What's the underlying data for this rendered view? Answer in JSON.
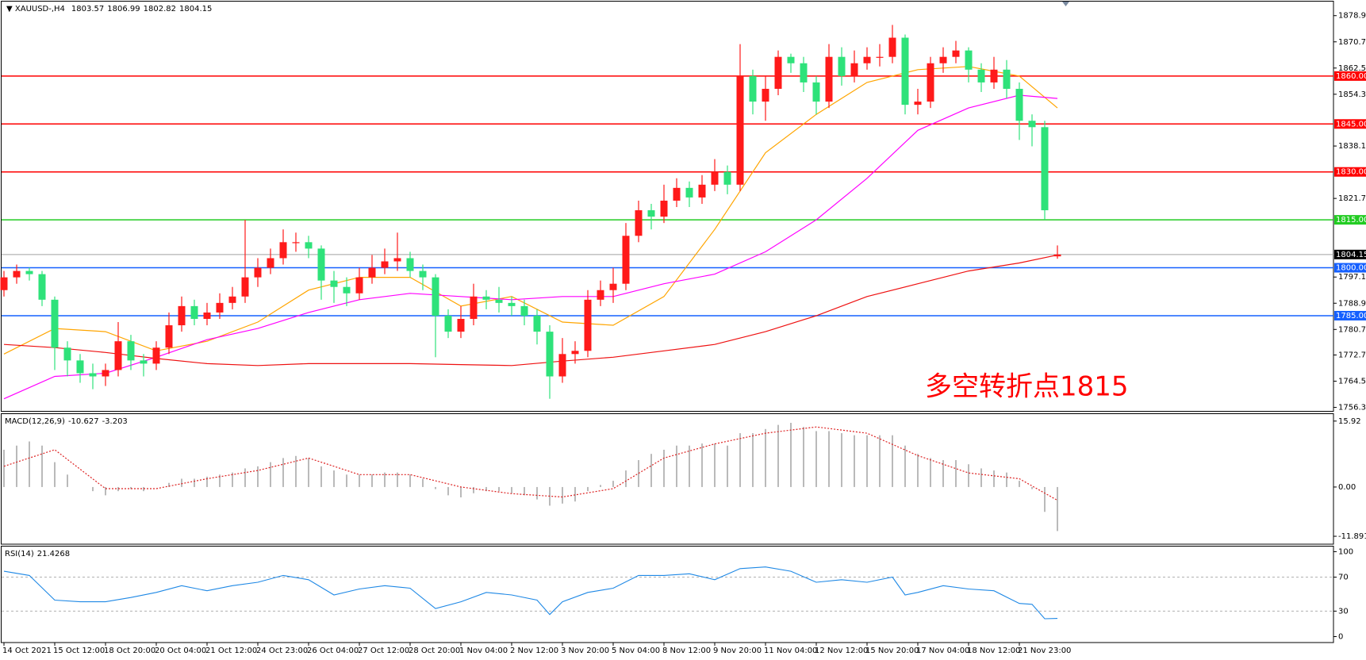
{
  "chart_data": [
    {
      "type": "candlestick",
      "symbol": "XAUUSD-,H4",
      "annotation": "多空转折点1815",
      "annotation_color": "#ff0000",
      "up_color": "#ff1a1a",
      "down_color": "#2ee27a",
      "categories": [
        "14 Oct 2021",
        null,
        null,
        null,
        "15 Oct 12:00",
        null,
        null,
        null,
        "18 Oct 20:00",
        null,
        null,
        null,
        "20 Oct 04:00",
        null,
        null,
        null,
        "21 Oct 12:00",
        null,
        null,
        null,
        "24 Oct 23:00",
        null,
        null,
        null,
        "26 Oct 04:00",
        null,
        null,
        null,
        "27 Oct 12:00",
        null,
        null,
        null,
        "28 Oct 20:00",
        null,
        null,
        null,
        "1 Nov 04:00",
        null,
        null,
        null,
        "2 Nov 12:00",
        null,
        null,
        null,
        "3 Nov 20:00",
        null,
        null,
        null,
        "5 Nov 04:00",
        null,
        null,
        null,
        "8 Nov 12:00",
        null,
        null,
        null,
        "9 Nov 20:00",
        null,
        null,
        null,
        "11 Nov 04:00",
        null,
        null,
        null,
        "12 Nov 12:00",
        null,
        null,
        null,
        "15 Nov 20:00",
        null,
        null,
        null,
        "17 Nov 04:00",
        null,
        null,
        null,
        "18 Nov 12:00",
        null,
        null,
        null,
        "21 Nov 23:00",
        null,
        null,
        null
      ],
      "ohlc": [
        [
          1793,
          1799,
          1791,
          1797
        ],
        [
          1797,
          1801,
          1795,
          1799
        ],
        [
          1799,
          1800,
          1796,
          1798
        ],
        [
          1798,
          1799,
          1788,
          1790
        ],
        [
          1790,
          1791,
          1768,
          1775
        ],
        [
          1775,
          1777,
          1766,
          1771
        ],
        [
          1771,
          1773,
          1764,
          1767
        ],
        [
          1767,
          1770,
          1762,
          1766
        ],
        [
          1766,
          1770,
          1763,
          1768
        ],
        [
          1768,
          1783,
          1766,
          1777
        ],
        [
          1777,
          1779,
          1768,
          1771
        ],
        [
          1771,
          1773,
          1766,
          1770
        ],
        [
          1770,
          1777,
          1768,
          1775
        ],
        [
          1775,
          1786,
          1773,
          1782
        ],
        [
          1782,
          1791,
          1780,
          1788
        ],
        [
          1788,
          1790,
          1782,
          1784
        ],
        [
          1784,
          1789,
          1782,
          1786
        ],
        [
          1786,
          1792,
          1784,
          1789
        ],
        [
          1789,
          1794,
          1787,
          1791
        ],
        [
          1791,
          1815,
          1789,
          1797
        ],
        [
          1797,
          1803,
          1794,
          1800
        ],
        [
          1800,
          1806,
          1798,
          1803
        ],
        [
          1803,
          1812,
          1801,
          1808
        ],
        [
          1808,
          1811,
          1805,
          1808
        ],
        [
          1808,
          1810,
          1803,
          1806
        ],
        [
          1806,
          1807,
          1790,
          1796
        ],
        [
          1796,
          1799,
          1789,
          1794
        ],
        [
          1794,
          1797,
          1788,
          1792
        ],
        [
          1792,
          1800,
          1790,
          1797
        ],
        [
          1797,
          1804,
          1795,
          1800
        ],
        [
          1800,
          1806,
          1798,
          1802
        ],
        [
          1802,
          1811,
          1799,
          1803
        ],
        [
          1803,
          1805,
          1797,
          1799
        ],
        [
          1799,
          1801,
          1793,
          1797
        ],
        [
          1797,
          1798,
          1772,
          1785
        ],
        [
          1785,
          1787,
          1778,
          1780
        ],
        [
          1780,
          1788,
          1778,
          1784
        ],
        [
          1784,
          1795,
          1782,
          1791
        ],
        [
          1791,
          1793,
          1787,
          1790
        ],
        [
          1790,
          1794,
          1786,
          1789
        ],
        [
          1789,
          1791,
          1785,
          1788
        ],
        [
          1788,
          1790,
          1782,
          1785
        ],
        [
          1785,
          1787,
          1776,
          1780
        ],
        [
          1780,
          1782,
          1759,
          1766
        ],
        [
          1766,
          1778,
          1764,
          1773
        ],
        [
          1773,
          1777,
          1770,
          1774
        ],
        [
          1774,
          1793,
          1772,
          1790
        ],
        [
          1790,
          1796,
          1788,
          1793
        ],
        [
          1793,
          1800,
          1789,
          1795
        ],
        [
          1795,
          1814,
          1793,
          1810
        ],
        [
          1810,
          1821,
          1808,
          1818
        ],
        [
          1818,
          1820,
          1812,
          1816
        ],
        [
          1816,
          1826,
          1814,
          1821
        ],
        [
          1821,
          1828,
          1819,
          1825
        ],
        [
          1825,
          1827,
          1819,
          1822
        ],
        [
          1822,
          1829,
          1820,
          1826
        ],
        [
          1826,
          1834,
          1824,
          1830
        ],
        [
          1830,
          1832,
          1823,
          1826
        ],
        [
          1826,
          1870,
          1824,
          1860
        ],
        [
          1860,
          1862,
          1848,
          1852
        ],
        [
          1852,
          1860,
          1846,
          1856
        ],
        [
          1856,
          1868,
          1854,
          1866
        ],
        [
          1866,
          1867,
          1861,
          1864
        ],
        [
          1864,
          1866,
          1855,
          1858
        ],
        [
          1858,
          1860,
          1848,
          1852
        ],
        [
          1852,
          1870,
          1850,
          1866
        ],
        [
          1866,
          1869,
          1857,
          1860
        ],
        [
          1860,
          1868,
          1858,
          1864
        ],
        [
          1864,
          1869,
          1862,
          1866
        ],
        [
          1866,
          1870,
          1863,
          1866
        ],
        [
          1866,
          1876,
          1864,
          1872
        ],
        [
          1872,
          1873,
          1848,
          1851
        ],
        [
          1851,
          1856,
          1848,
          1852
        ],
        [
          1852,
          1866,
          1850,
          1864
        ],
        [
          1864,
          1869,
          1861,
          1866
        ],
        [
          1866,
          1871,
          1864,
          1868
        ],
        [
          1868,
          1869,
          1858,
          1862
        ],
        [
          1862,
          1864,
          1855,
          1858
        ],
        [
          1858,
          1866,
          1856,
          1862
        ],
        [
          1862,
          1865,
          1853,
          1856
        ],
        [
          1856,
          1858,
          1840,
          1846
        ],
        [
          1846,
          1848,
          1838,
          1844
        ],
        [
          1844,
          1846,
          1815,
          1818
        ],
        [
          1803.57,
          1806.99,
          1802.82,
          1804.15
        ]
      ],
      "series": [
        {
          "color": "#ffa500",
          "x": [
            0,
            4,
            8,
            12,
            16,
            20,
            24,
            28,
            32,
            36,
            40,
            44,
            48,
            52,
            56,
            60,
            64,
            68,
            72,
            76,
            80,
            83
          ],
          "values": [
            1773,
            1781,
            1780,
            1774,
            1777,
            1783,
            1793,
            1797,
            1797,
            1788,
            1791,
            1783,
            1782,
            1791,
            1812,
            1836,
            1848,
            1858,
            1862,
            1863,
            1860,
            1850
          ]
        },
        {
          "color": "#ff00ff",
          "x": [
            0,
            4,
            8,
            12,
            16,
            20,
            24,
            28,
            32,
            36,
            40,
            44,
            48,
            52,
            56,
            60,
            64,
            68,
            72,
            76,
            80,
            83
          ],
          "values": [
            1759,
            1766,
            1767,
            1772,
            1777.5,
            1781,
            1786,
            1790,
            1792,
            1791,
            1790,
            1791,
            1791,
            1795,
            1798,
            1805,
            1815,
            1828,
            1843,
            1850,
            1854,
            1853
          ]
        },
        {
          "color": "#ee1111",
          "x": [
            0,
            4,
            8,
            12,
            16,
            20,
            24,
            28,
            32,
            36,
            40,
            44,
            48,
            52,
            56,
            60,
            64,
            68,
            72,
            76,
            80,
            83
          ],
          "values": [
            1776,
            1775,
            1773.5,
            1771.6,
            1770,
            1769.4,
            1770,
            1770,
            1770,
            1769.7,
            1769.4,
            1770.8,
            1772,
            1774,
            1776,
            1780,
            1785,
            1791,
            1795,
            1799,
            1801.5,
            1804
          ]
        }
      ],
      "levels": [
        {
          "value": 1860,
          "label": "1860.00",
          "color": "#ff0000"
        },
        {
          "value": 1845,
          "label": "1845.00",
          "color": "#ff0000"
        },
        {
          "value": 1830,
          "label": "1830.00",
          "color": "#ff0000"
        },
        {
          "value": 1815,
          "label": "1815.00",
          "color": "#22cc22"
        },
        {
          "value": 1800,
          "label": "1800.00",
          "color": "#1560ff"
        },
        {
          "value": 1785,
          "label": "1785.00",
          "color": "#1560ff"
        }
      ],
      "current": {
        "value": 1804.15,
        "label": "1804.15",
        "color": "#000000",
        "line_color": "#a0a0a0"
      },
      "ylim": [
        1755.2,
        1883.3
      ],
      "yticks": [
        {
          "value": 1878.9,
          "label": "1878.90"
        },
        {
          "value": 1870.7,
          "label": "1870.70"
        },
        {
          "value": 1862.5,
          "label": "1862.50"
        },
        {
          "value": 1854.3,
          "label": "1854.30"
        },
        {
          "value": 1838.1,
          "label": "1838.10"
        },
        {
          "value": 1821.7,
          "label": "1821.70"
        },
        {
          "value": 1797.1,
          "label": "1797.10"
        },
        {
          "value": 1788.9,
          "label": "1788.90"
        },
        {
          "value": 1780.7,
          "label": "1780.70"
        },
        {
          "value": 1772.7,
          "label": "1772.70"
        },
        {
          "value": 1764.5,
          "label": "1764.50"
        },
        {
          "value": 1756.3,
          "label": "1756.30"
        }
      ]
    },
    {
      "type": "macd",
      "name": "MACD(12,26,9)",
      "color": "#a8a8a8",
      "values": [
        9,
        10,
        11,
        10,
        6,
        3,
        0,
        -1,
        -2,
        -1,
        -0.5,
        -1,
        0,
        1,
        2,
        2,
        2.5,
        3,
        3.5,
        4.5,
        5,
        6,
        7,
        7.5,
        7,
        5,
        4,
        3,
        3,
        3,
        3.5,
        3.5,
        3,
        2,
        -0.5,
        -2,
        -2.5,
        -1.5,
        -1,
        -1,
        -1.5,
        -2,
        -3,
        -4.5,
        -4,
        -3.5,
        -1,
        0.5,
        1.5,
        4,
        6.5,
        8,
        9,
        10,
        10,
        10.5,
        10.5,
        10,
        13,
        13,
        14,
        15,
        15.5,
        14.5,
        13.5,
        13.5,
        13,
        12.5,
        12.5,
        12.5,
        12.5,
        10,
        8,
        7,
        6.5,
        6.5,
        5.5,
        4.5,
        4,
        3.5,
        1.5,
        -0.5,
        -6,
        -10.627
      ],
      "signal": {
        "color": "#dd2222",
        "x": [
          0,
          4,
          8,
          12,
          16,
          20,
          24,
          28,
          32,
          36,
          40,
          44,
          48,
          52,
          56,
          60,
          64,
          68,
          72,
          76,
          80,
          83
        ],
        "values": [
          5,
          9,
          -0.4,
          -0.4,
          2,
          4,
          7,
          3,
          3,
          0,
          -1.6,
          -2.4,
          -0.4,
          7,
          10.4,
          13,
          14.5,
          13,
          7.6,
          3.4,
          2,
          -3.203
        ]
      },
      "ylim": [
        -13.8,
        17.8
      ],
      "yticks": [
        15.92,
        {
          "value": 0,
          "label": "0.00"
        },
        -11.891
      ]
    },
    {
      "type": "line",
      "name": "RSI(14)",
      "color": "#1e88e5",
      "x": [
        0,
        2,
        4,
        6,
        8,
        10,
        12,
        14,
        16,
        18,
        20,
        22,
        24,
        26,
        28,
        30,
        32,
        34,
        36,
        38,
        40,
        42,
        43,
        44,
        46,
        48,
        50,
        52,
        54,
        56,
        58,
        60,
        62,
        64,
        66,
        68,
        70,
        71,
        72,
        74,
        76,
        78,
        80,
        81,
        82,
        83
      ],
      "values": [
        77,
        72,
        43,
        41,
        41,
        46,
        52,
        60,
        54,
        60,
        64,
        72,
        67,
        49,
        56,
        60,
        57,
        33,
        41,
        52,
        49,
        43,
        26,
        41,
        52,
        57,
        72,
        72,
        74,
        67,
        80,
        82,
        77,
        64,
        67,
        64,
        70,
        49,
        52,
        60,
        56,
        54,
        39,
        38,
        21,
        21.4268
      ],
      "ylim": [
        -7,
        106
      ],
      "yticks": [
        100,
        70,
        30,
        0
      ],
      "levels": [
        70,
        30
      ]
    }
  ]
}
